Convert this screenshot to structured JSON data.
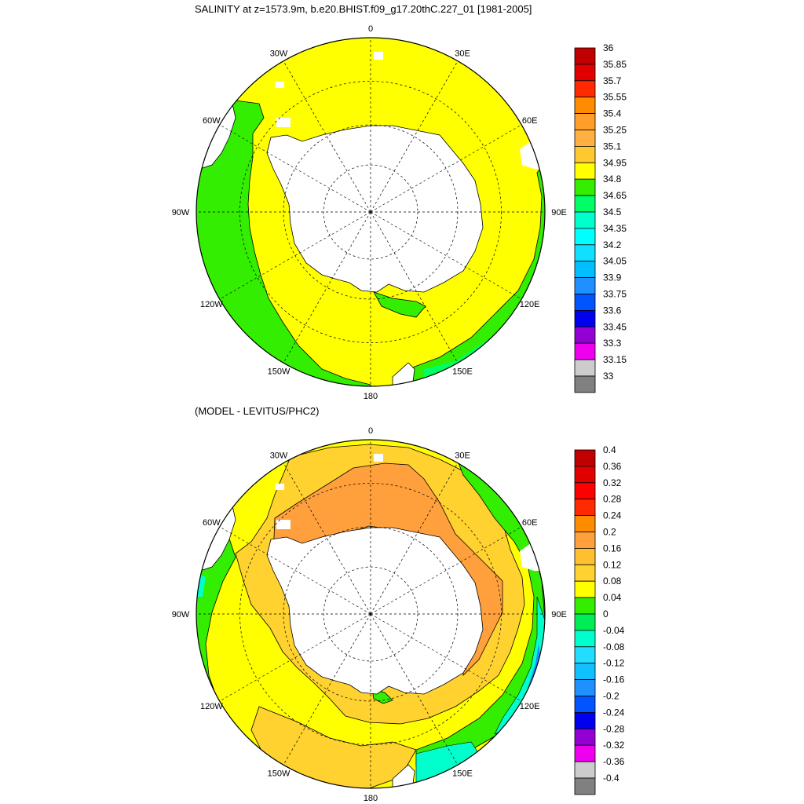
{
  "top": {
    "title": "SALINITY at z=1573.9m, b.e20.BHIST.f09_g17.20thC.227_01 [1981-2005]",
    "colorbar": {
      "labels": [
        "36",
        "35.85",
        "35.7",
        "35.55",
        "35.4",
        "35.25",
        "35.1",
        "34.95",
        "34.8",
        "34.65",
        "34.5",
        "34.35",
        "34.2",
        "34.05",
        "33.9",
        "33.75",
        "33.6",
        "33.45",
        "33.3",
        "33.15",
        "33"
      ],
      "colors": [
        "#c00000",
        "#e00000",
        "#ff2a00",
        "#ff8c00",
        "#ff9f2a",
        "#ffb040",
        "#ffc830",
        "#ffff00",
        "#33ee00",
        "#00ff66",
        "#00ffcc",
        "#00ffff",
        "#11dfff",
        "#00bfff",
        "#1e90ff",
        "#0055ff",
        "#0000ee",
        "#9400d3",
        "#ee00ee",
        "#cccccc",
        "#808080"
      ]
    }
  },
  "bottom": {
    "title": "(MODEL - LEVITUS/PHC2)",
    "colorbar": {
      "labels": [
        "0.4",
        "0.36",
        "0.32",
        "0.28",
        "0.24",
        "0.2",
        "0.16",
        "0.12",
        "0.08",
        "0.04",
        "0",
        "-0.04",
        "-0.08",
        "-0.12",
        "-0.16",
        "-0.2",
        "-0.24",
        "-0.28",
        "-0.32",
        "-0.36",
        "-0.4"
      ],
      "colors": [
        "#c00000",
        "#e00000",
        "#ff0000",
        "#ff2a00",
        "#ff8c00",
        "#ffa03c",
        "#ffc030",
        "#ffd230",
        "#ffff00",
        "#33ee00",
        "#00ee55",
        "#00ffcc",
        "#22ddff",
        "#11c0ff",
        "#1e90ff",
        "#0055ff",
        "#0000ee",
        "#9400d3",
        "#ee00ee",
        "#cccccc",
        "#808080"
      ]
    }
  },
  "map": {
    "longitude_labels": [
      {
        "lon": 0,
        "label": "0"
      },
      {
        "lon": 30,
        "label": "30E"
      },
      {
        "lon": 60,
        "label": "60E"
      },
      {
        "lon": 90,
        "label": "90E"
      },
      {
        "lon": 120,
        "label": "120E"
      },
      {
        "lon": 150,
        "label": "150E"
      },
      {
        "lon": 180,
        "label": "180"
      },
      {
        "lon": -150,
        "label": "150W"
      },
      {
        "lon": -120,
        "label": "120W"
      },
      {
        "lon": -90,
        "label": "90W"
      },
      {
        "lon": -60,
        "label": "60W"
      },
      {
        "lon": -30,
        "label": "30W"
      }
    ],
    "projection": "south polar stereographic",
    "grid": true
  }
}
